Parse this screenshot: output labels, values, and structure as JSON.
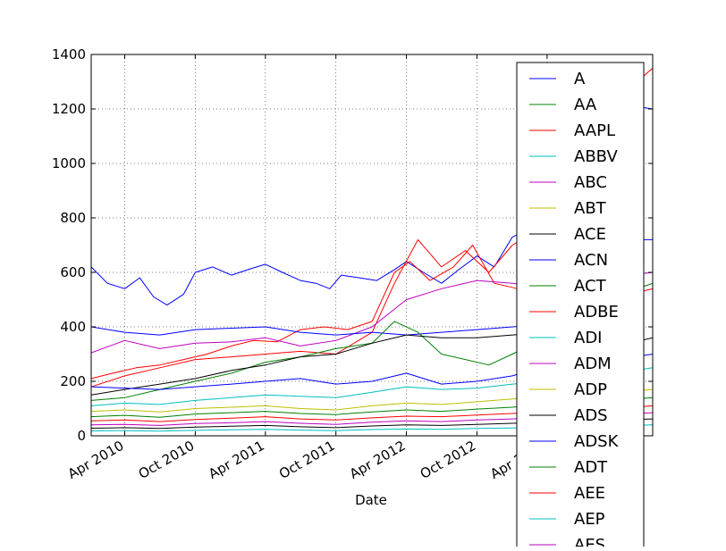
{
  "chart_data": {
    "type": "line",
    "title": "",
    "xlabel": "Date",
    "ylabel": "",
    "x_range": [
      "2010-01-04",
      "2013-12-31"
    ],
    "ylim": [
      0,
      1400
    ],
    "yticks": [
      0,
      200,
      400,
      600,
      800,
      1000,
      1200,
      1400
    ],
    "xticks": [
      {
        "label": "Apr 2010",
        "date": "2010-04-01"
      },
      {
        "label": "Oct 2010",
        "date": "2010-10-01"
      },
      {
        "label": "Apr 2011",
        "date": "2011-04-01"
      },
      {
        "label": "Oct 2011",
        "date": "2011-10-01"
      },
      {
        "label": "Apr 2012",
        "date": "2012-04-01"
      },
      {
        "label": "Oct 2012",
        "date": "2012-10-01"
      },
      {
        "label": "Apr 2013",
        "date": "2013-04-01"
      }
    ],
    "grid": true,
    "legend_position": "right",
    "legend_entries": [
      {
        "name": "A",
        "color": "#0000ff"
      },
      {
        "name": "AA",
        "color": "#008000"
      },
      {
        "name": "AAPL",
        "color": "#ff0000"
      },
      {
        "name": "ABBV",
        "color": "#00bfbf"
      },
      {
        "name": "ABC",
        "color": "#bf00bf"
      },
      {
        "name": "ABT",
        "color": "#bfbf00"
      },
      {
        "name": "ACE",
        "color": "#000000"
      },
      {
        "name": "ACN",
        "color": "#0000ff"
      },
      {
        "name": "ACT",
        "color": "#008000"
      },
      {
        "name": "ADBE",
        "color": "#ff0000"
      },
      {
        "name": "ADI",
        "color": "#00bfbf"
      },
      {
        "name": "ADM",
        "color": "#bf00bf"
      },
      {
        "name": "ADP",
        "color": "#bfbf00"
      },
      {
        "name": "ADS",
        "color": "#000000"
      },
      {
        "name": "ADSK",
        "color": "#0000ff"
      },
      {
        "name": "ADT",
        "color": "#008000"
      },
      {
        "name": "AEE",
        "color": "#ff0000"
      },
      {
        "name": "AEP",
        "color": "#00bfbf"
      },
      {
        "name": "AES",
        "color": "#bf00bf"
      }
    ],
    "series": [
      {
        "color": "#0000ff",
        "x": [
          "2010-01-04",
          "2010-02-15",
          "2010-04-01",
          "2010-05-10",
          "2010-06-15",
          "2010-07-20",
          "2010-09-01",
          "2010-10-01",
          "2010-11-15",
          "2011-01-03",
          "2011-02-15",
          "2011-04-01",
          "2011-05-15",
          "2011-07-01",
          "2011-08-10",
          "2011-09-15",
          "2011-10-15",
          "2011-12-01",
          "2012-01-15",
          "2012-03-01",
          "2012-04-01",
          "2012-05-15",
          "2012-07-01",
          "2012-08-15",
          "2012-10-01",
          "2012-11-15",
          "2013-01-01",
          "2013-02-15",
          "2013-04-01",
          "2013-06-01",
          "2013-08-01",
          "2013-10-01",
          "2013-12-31"
        ],
        "values": [
          620,
          560,
          540,
          580,
          510,
          480,
          520,
          600,
          620,
          590,
          610,
          630,
          600,
          570,
          560,
          540,
          590,
          580,
          570,
          610,
          640,
          600,
          560,
          610,
          660,
          620,
          730,
          760,
          820,
          1100,
          1180,
          1220,
          1200
        ]
      },
      {
        "color": "#ff0000",
        "x": [
          "2010-01-04",
          "2010-03-01",
          "2010-05-01",
          "2010-07-01",
          "2010-09-01",
          "2010-11-01",
          "2011-01-03",
          "2011-03-01",
          "2011-05-01",
          "2011-07-01",
          "2011-09-01",
          "2011-11-01",
          "2012-01-03",
          "2012-03-01",
          "2012-04-10",
          "2012-06-01",
          "2012-08-01",
          "2012-09-20",
          "2012-11-15",
          "2013-01-15",
          "2013-03-01",
          "2013-05-01",
          "2013-07-01",
          "2013-09-01",
          "2013-11-01",
          "2013-12-31"
        ],
        "values": [
          210,
          230,
          250,
          260,
          280,
          300,
          330,
          350,
          345,
          390,
          400,
          390,
          420,
          600,
          640,
          570,
          620,
          700,
          560,
          540,
          450,
          430,
          430,
          480,
          520,
          540
        ]
      },
      {
        "color": "#ff0000",
        "x": [
          "2010-01-04",
          "2010-04-01",
          "2010-07-01",
          "2010-10-01",
          "2011-01-03",
          "2011-04-01",
          "2011-07-01",
          "2011-10-01",
          "2012-01-03",
          "2012-03-01",
          "2012-05-01",
          "2012-07-01",
          "2012-09-01",
          "2012-11-01",
          "2013-01-01",
          "2013-03-01",
          "2013-06-01",
          "2013-09-01",
          "2013-12-31"
        ],
        "values": [
          180,
          220,
          250,
          280,
          290,
          300,
          310,
          300,
          380,
          560,
          720,
          620,
          680,
          600,
          700,
          750,
          950,
          1200,
          1350
        ]
      },
      {
        "color": "#bf00bf",
        "x": [
          "2010-01-04",
          "2010-04-01",
          "2010-07-01",
          "2010-10-01",
          "2011-01-03",
          "2011-04-01",
          "2011-07-01",
          "2011-10-01",
          "2012-01-03",
          "2012-04-01",
          "2012-07-01",
          "2012-10-01",
          "2013-01-01",
          "2013-03-01",
          "2013-06-01",
          "2013-09-01",
          "2013-12-31"
        ],
        "values": [
          305,
          350,
          320,
          340,
          345,
          360,
          330,
          350,
          400,
          500,
          540,
          570,
          560,
          550,
          560,
          580,
          600
        ]
      },
      {
        "color": "#0000ff",
        "x": [
          "2010-01-04",
          "2010-04-01",
          "2010-07-01",
          "2010-10-01",
          "2011-01-03",
          "2011-04-01",
          "2011-07-01",
          "2011-10-01",
          "2012-01-03",
          "2012-04-01",
          "2012-07-01",
          "2012-10-01",
          "2013-01-01",
          "2013-04-01",
          "2013-07-01",
          "2013-10-01",
          "2013-12-31"
        ],
        "values": [
          400,
          380,
          370,
          390,
          395,
          400,
          380,
          370,
          380,
          370,
          380,
          390,
          400,
          410,
          700,
          720,
          720
        ]
      },
      {
        "color": "#008000",
        "x": [
          "2010-01-04",
          "2010-04-01",
          "2010-07-01",
          "2010-10-01",
          "2011-01-03",
          "2011-04-01",
          "2011-07-01",
          "2011-10-01",
          "2012-01-03",
          "2012-03-01",
          "2012-05-01",
          "2012-07-01",
          "2012-09-01",
          "2012-11-01",
          "2013-01-01",
          "2013-03-01",
          "2013-06-01",
          "2013-09-01",
          "2013-12-31"
        ],
        "values": [
          130,
          140,
          170,
          200,
          230,
          270,
          290,
          320,
          340,
          420,
          380,
          300,
          280,
          260,
          300,
          340,
          420,
          500,
          560
        ]
      },
      {
        "color": "#000000",
        "x": [
          "2010-01-04",
          "2010-04-01",
          "2010-07-01",
          "2010-10-01",
          "2011-01-03",
          "2011-04-01",
          "2011-07-01",
          "2011-10-01",
          "2012-01-03",
          "2012-04-01",
          "2012-07-01",
          "2012-10-01",
          "2013-01-01",
          "2013-04-01",
          "2013-07-01",
          "2013-10-01",
          "2013-12-31"
        ],
        "values": [
          150,
          170,
          190,
          210,
          240,
          260,
          290,
          300,
          340,
          370,
          360,
          360,
          370,
          380,
          300,
          330,
          360
        ]
      },
      {
        "color": "#0000ff",
        "x": [
          "2010-01-04",
          "2010-04-01",
          "2010-07-01",
          "2010-10-01",
          "2011-01-03",
          "2011-04-01",
          "2011-07-01",
          "2011-10-01",
          "2012-01-03",
          "2012-04-01",
          "2012-07-01",
          "2012-10-01",
          "2013-01-01",
          "2013-04-01",
          "2013-07-01",
          "2013-10-01",
          "2013-12-31"
        ],
        "values": [
          180,
          175,
          170,
          180,
          190,
          200,
          210,
          190,
          200,
          230,
          190,
          200,
          220,
          260,
          250,
          280,
          300
        ]
      },
      {
        "color": "#00bfbf",
        "x": [
          "2010-01-04",
          "2010-04-01",
          "2010-07-01",
          "2010-10-01",
          "2011-01-03",
          "2011-04-01",
          "2011-07-01",
          "2011-10-01",
          "2012-01-03",
          "2012-04-01",
          "2012-07-01",
          "2012-10-01",
          "2013-01-01",
          "2013-04-01",
          "2013-07-01",
          "2013-10-01",
          "2013-12-31"
        ],
        "values": [
          110,
          120,
          115,
          130,
          140,
          150,
          145,
          140,
          160,
          180,
          170,
          175,
          190,
          200,
          210,
          230,
          250
        ]
      },
      {
        "color": "#bfbf00",
        "x": [
          "2010-01-04",
          "2010-04-01",
          "2010-07-01",
          "2010-10-01",
          "2011-01-03",
          "2011-04-01",
          "2011-07-01",
          "2011-10-01",
          "2012-01-03",
          "2012-04-01",
          "2012-07-01",
          "2012-10-01",
          "2013-01-01",
          "2013-04-01",
          "2013-07-01",
          "2013-10-01",
          "2013-12-31"
        ],
        "values": [
          90,
          95,
          88,
          100,
          105,
          110,
          100,
          95,
          110,
          120,
          115,
          125,
          135,
          145,
          150,
          160,
          170
        ]
      },
      {
        "color": "#008000",
        "x": [
          "2010-01-04",
          "2010-04-01",
          "2010-07-01",
          "2010-10-01",
          "2011-01-03",
          "2011-04-01",
          "2011-07-01",
          "2011-10-01",
          "2012-01-03",
          "2012-04-01",
          "2012-07-01",
          "2012-10-01",
          "2013-01-01",
          "2013-04-01",
          "2013-07-01",
          "2013-10-01",
          "2013-12-31"
        ],
        "values": [
          70,
          75,
          68,
          80,
          85,
          90,
          82,
          78,
          88,
          95,
          90,
          98,
          105,
          115,
          120,
          130,
          140
        ]
      },
      {
        "color": "#ff0000",
        "x": [
          "2010-01-04",
          "2010-04-01",
          "2010-07-01",
          "2010-10-01",
          "2011-01-03",
          "2011-04-01",
          "2011-07-01",
          "2011-10-01",
          "2012-01-03",
          "2012-04-01",
          "2012-07-01",
          "2012-10-01",
          "2013-01-01",
          "2013-04-01",
          "2013-07-01",
          "2013-10-01",
          "2013-12-31"
        ],
        "values": [
          55,
          58,
          52,
          60,
          65,
          70,
          62,
          58,
          66,
          72,
          70,
          76,
          82,
          90,
          95,
          100,
          110
        ]
      },
      {
        "color": "#bf00bf",
        "x": [
          "2010-01-04",
          "2010-04-01",
          "2010-07-01",
          "2010-10-01",
          "2011-01-03",
          "2011-04-01",
          "2011-07-01",
          "2011-10-01",
          "2012-01-03",
          "2012-04-01",
          "2012-07-01",
          "2012-10-01",
          "2013-01-01",
          "2013-04-01",
          "2013-07-01",
          "2013-10-01",
          "2013-12-31"
        ],
        "values": [
          40,
          42,
          38,
          45,
          48,
          52,
          46,
          42,
          50,
          55,
          52,
          58,
          62,
          68,
          72,
          78,
          85
        ]
      },
      {
        "color": "#000000",
        "x": [
          "2010-01-04",
          "2010-04-01",
          "2010-07-01",
          "2010-10-01",
          "2011-01-03",
          "2011-04-01",
          "2011-07-01",
          "2011-10-01",
          "2012-01-03",
          "2012-04-01",
          "2012-07-01",
          "2012-10-01",
          "2013-01-01",
          "2013-04-01",
          "2013-07-01",
          "2013-10-01",
          "2013-12-31"
        ],
        "values": [
          28,
          30,
          27,
          32,
          35,
          38,
          33,
          30,
          36,
          40,
          38,
          42,
          46,
          50,
          54,
          58,
          62
        ]
      },
      {
        "color": "#00bfbf",
        "x": [
          "2010-01-04",
          "2010-04-01",
          "2010-07-01",
          "2010-10-01",
          "2011-01-03",
          "2011-04-01",
          "2011-07-01",
          "2011-10-01",
          "2012-01-03",
          "2012-04-01",
          "2012-07-01",
          "2012-10-01",
          "2013-01-01",
          "2013-04-01",
          "2013-07-01",
          "2013-10-01",
          "2013-12-31"
        ],
        "values": [
          18,
          19,
          17,
          20,
          22,
          24,
          21,
          19,
          23,
          25,
          24,
          27,
          29,
          32,
          34,
          37,
          40
        ]
      }
    ]
  }
}
